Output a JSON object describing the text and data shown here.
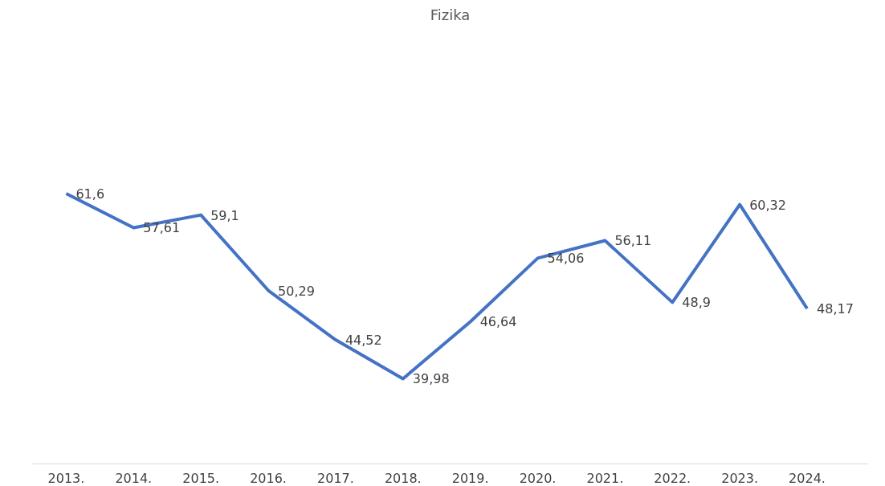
{
  "chart_data": {
    "type": "line",
    "title": "Fizika",
    "categories": [
      "2013.",
      "2014.",
      "2015.",
      "2016.",
      "2017.",
      "2018.",
      "2019.",
      "2020.",
      "2021.",
      "2022.",
      "2023.",
      "2024."
    ],
    "series": [
      {
        "color": "#4472c4",
        "values": [
          61.6,
          57.61,
          59.1,
          50.29,
          44.52,
          39.98,
          46.64,
          54.06,
          56.11,
          48.9,
          60.32,
          48.17
        ],
        "value_labels": [
          "61,6",
          "57,61",
          "59,1",
          "50,29",
          "44,52",
          "39,98",
          "46,64",
          "54,06",
          "56,11",
          "48,9",
          "60,32",
          "48,17"
        ]
      }
    ],
    "tick_labels": "x",
    "grid": false,
    "line_style": "solid"
  }
}
